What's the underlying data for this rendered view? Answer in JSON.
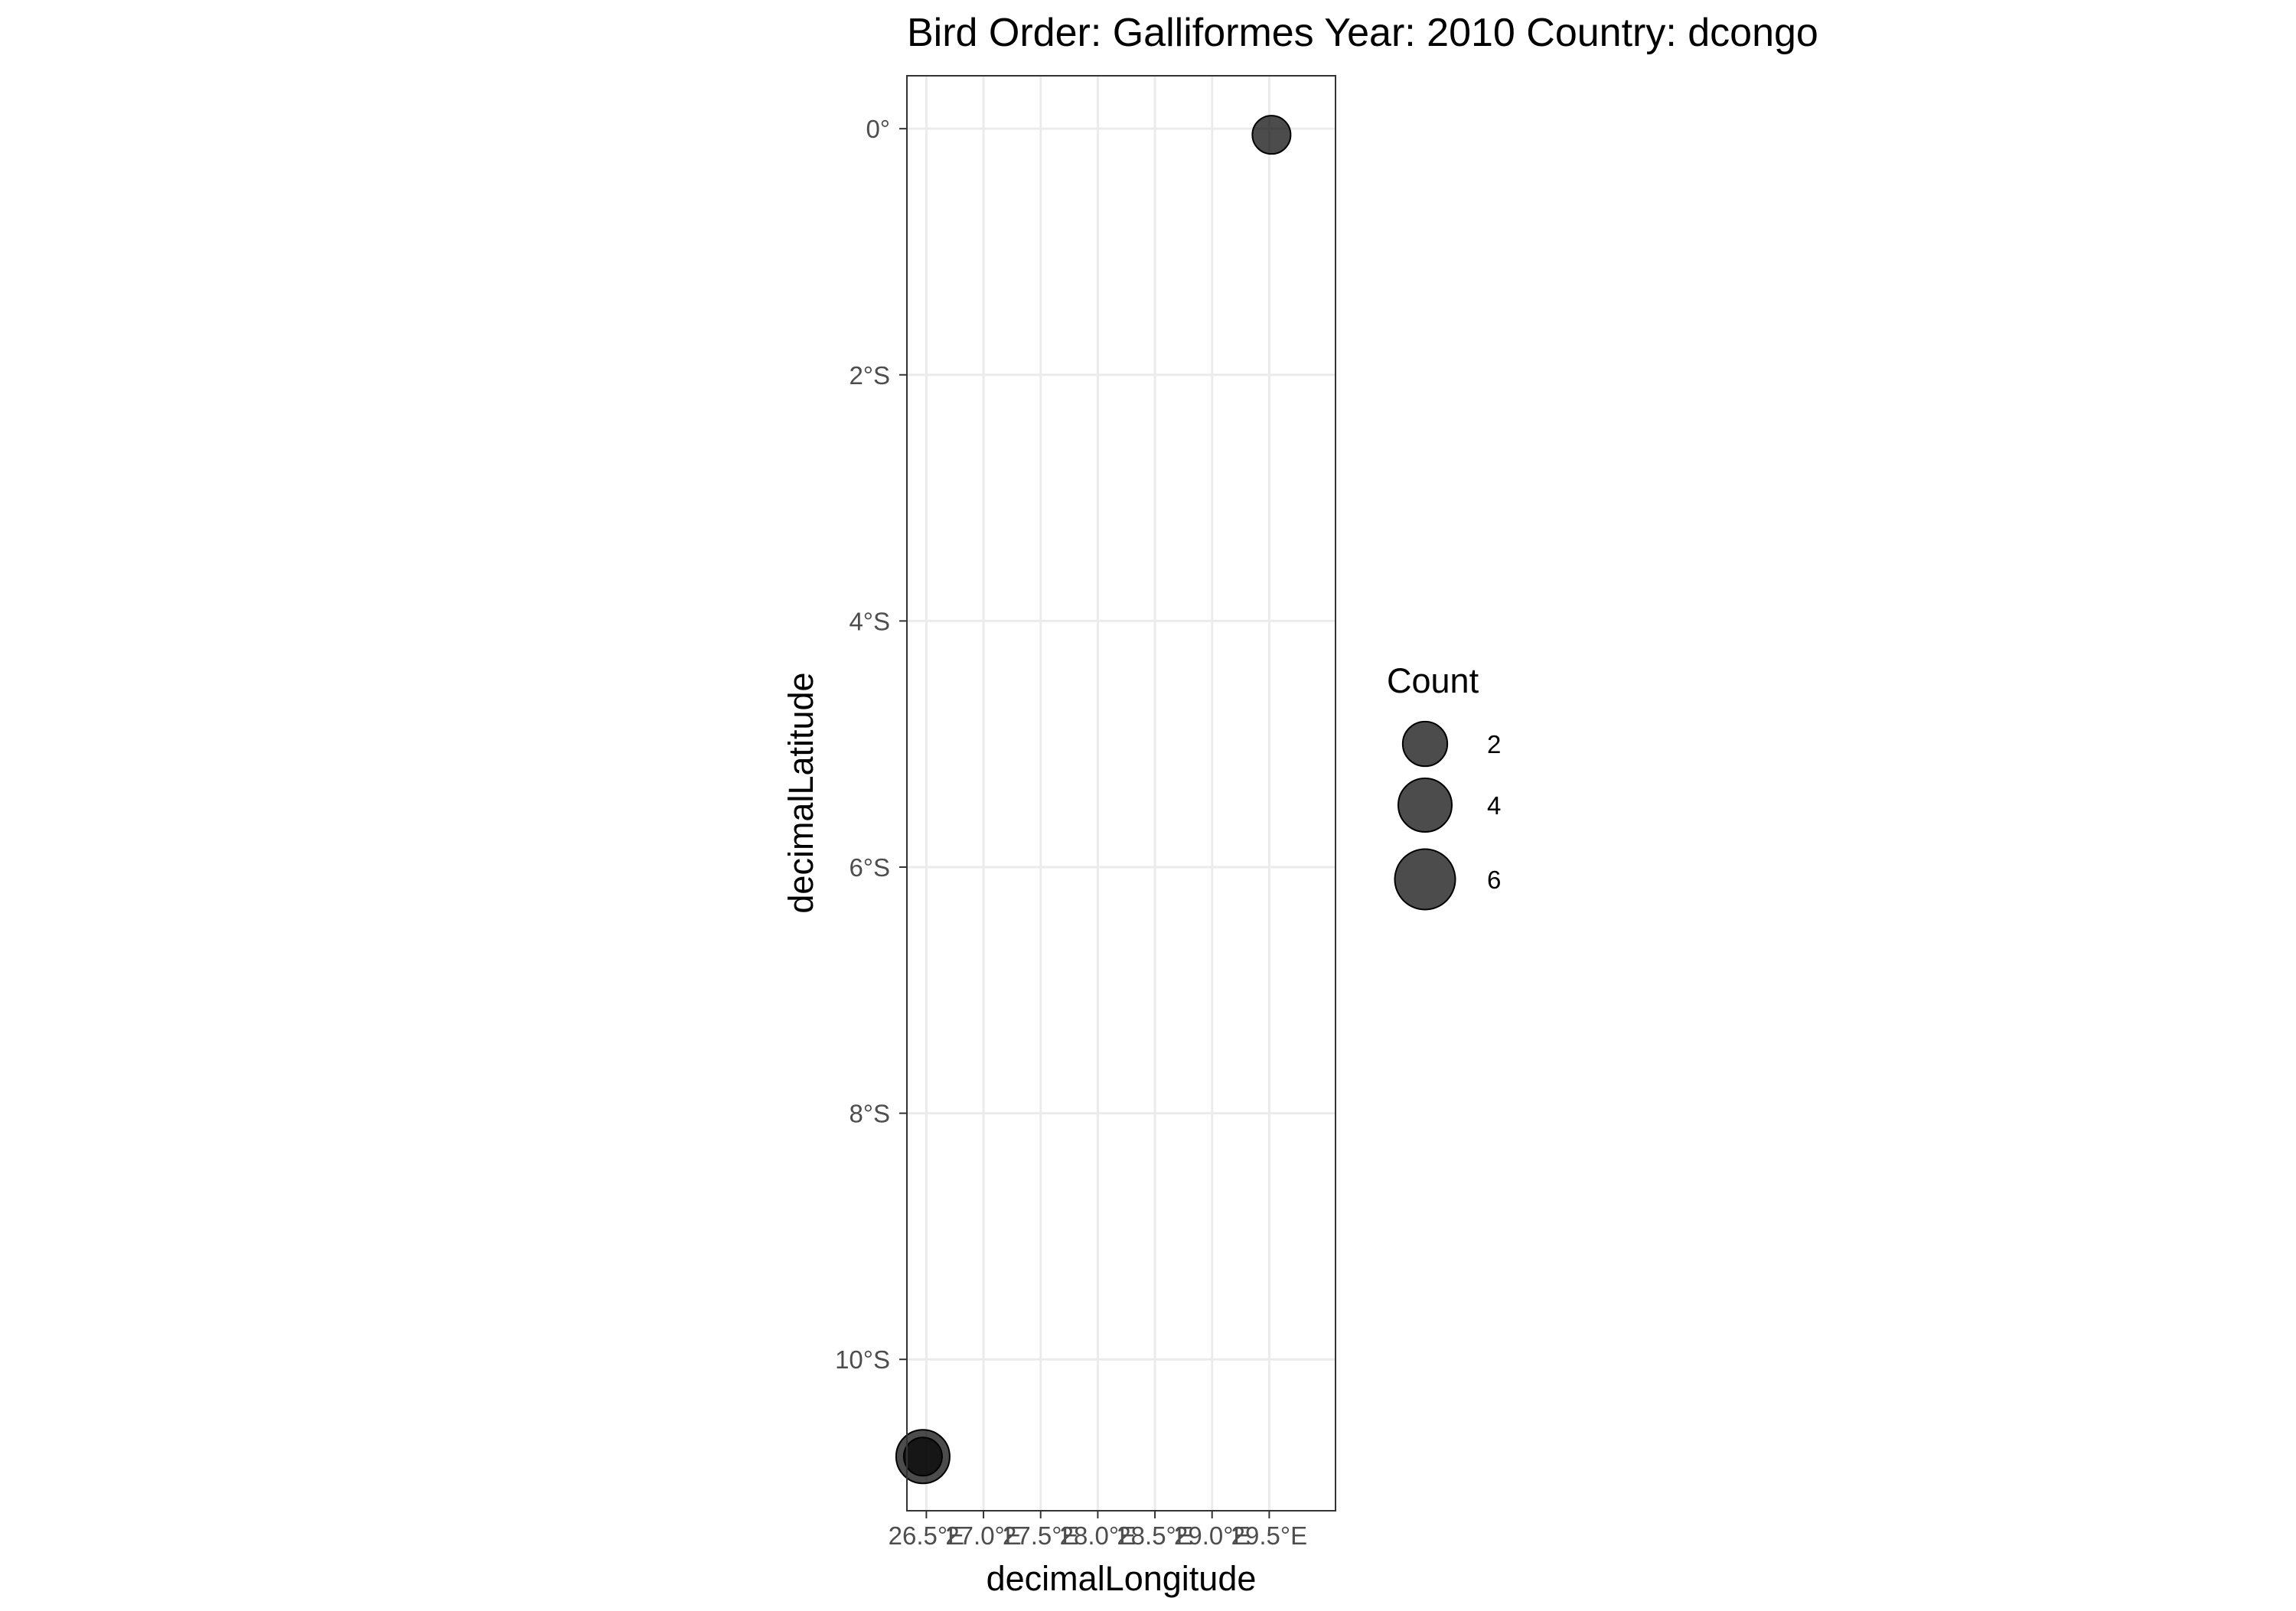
{
  "chart_data": {
    "type": "scatter",
    "title": "Bird Order: Galliformes Year: 2010 Country: dcongo",
    "xlabel": "decimalLongitude",
    "ylabel": "decimalLatitude",
    "xlim": [
      26.33,
      30.08
    ],
    "ylim": [
      -11.23,
      0.43
    ],
    "x_ticks": [
      {
        "value": 26.5,
        "label": "26.5°E"
      },
      {
        "value": 27.0,
        "label": "27.0°E"
      },
      {
        "value": 27.5,
        "label": "27.5°E"
      },
      {
        "value": 28.0,
        "label": "28.0°E"
      },
      {
        "value": 28.5,
        "label": "28.5°E"
      },
      {
        "value": 29.0,
        "label": "29.0°E"
      },
      {
        "value": 29.5,
        "label": "29.5°E"
      }
    ],
    "y_ticks": [
      {
        "value": 0,
        "label": "0°"
      },
      {
        "value": -2,
        "label": "2°S"
      },
      {
        "value": -4,
        "label": "4°S"
      },
      {
        "value": -6,
        "label": "6°S"
      },
      {
        "value": -8,
        "label": "8°S"
      },
      {
        "value": -10,
        "label": "10°S"
      }
    ],
    "points": [
      {
        "x": 29.52,
        "y": -0.05,
        "count": 1
      },
      {
        "x": 26.47,
        "y": -10.79,
        "count": 4
      },
      {
        "x": 26.47,
        "y": -10.79,
        "count": 1
      }
    ],
    "grid": true,
    "legend": {
      "title": "Count",
      "position": "right",
      "entries": [
        {
          "value": 2,
          "label": "2"
        },
        {
          "value": 4,
          "label": "4"
        },
        {
          "value": 6,
          "label": "6"
        }
      ]
    },
    "colors": {
      "point_fill": "#000000",
      "point_opacity": 0.7,
      "grid": "#ebebeb",
      "panel_border": "#333333",
      "tick_text": "#4d4d4d"
    }
  }
}
